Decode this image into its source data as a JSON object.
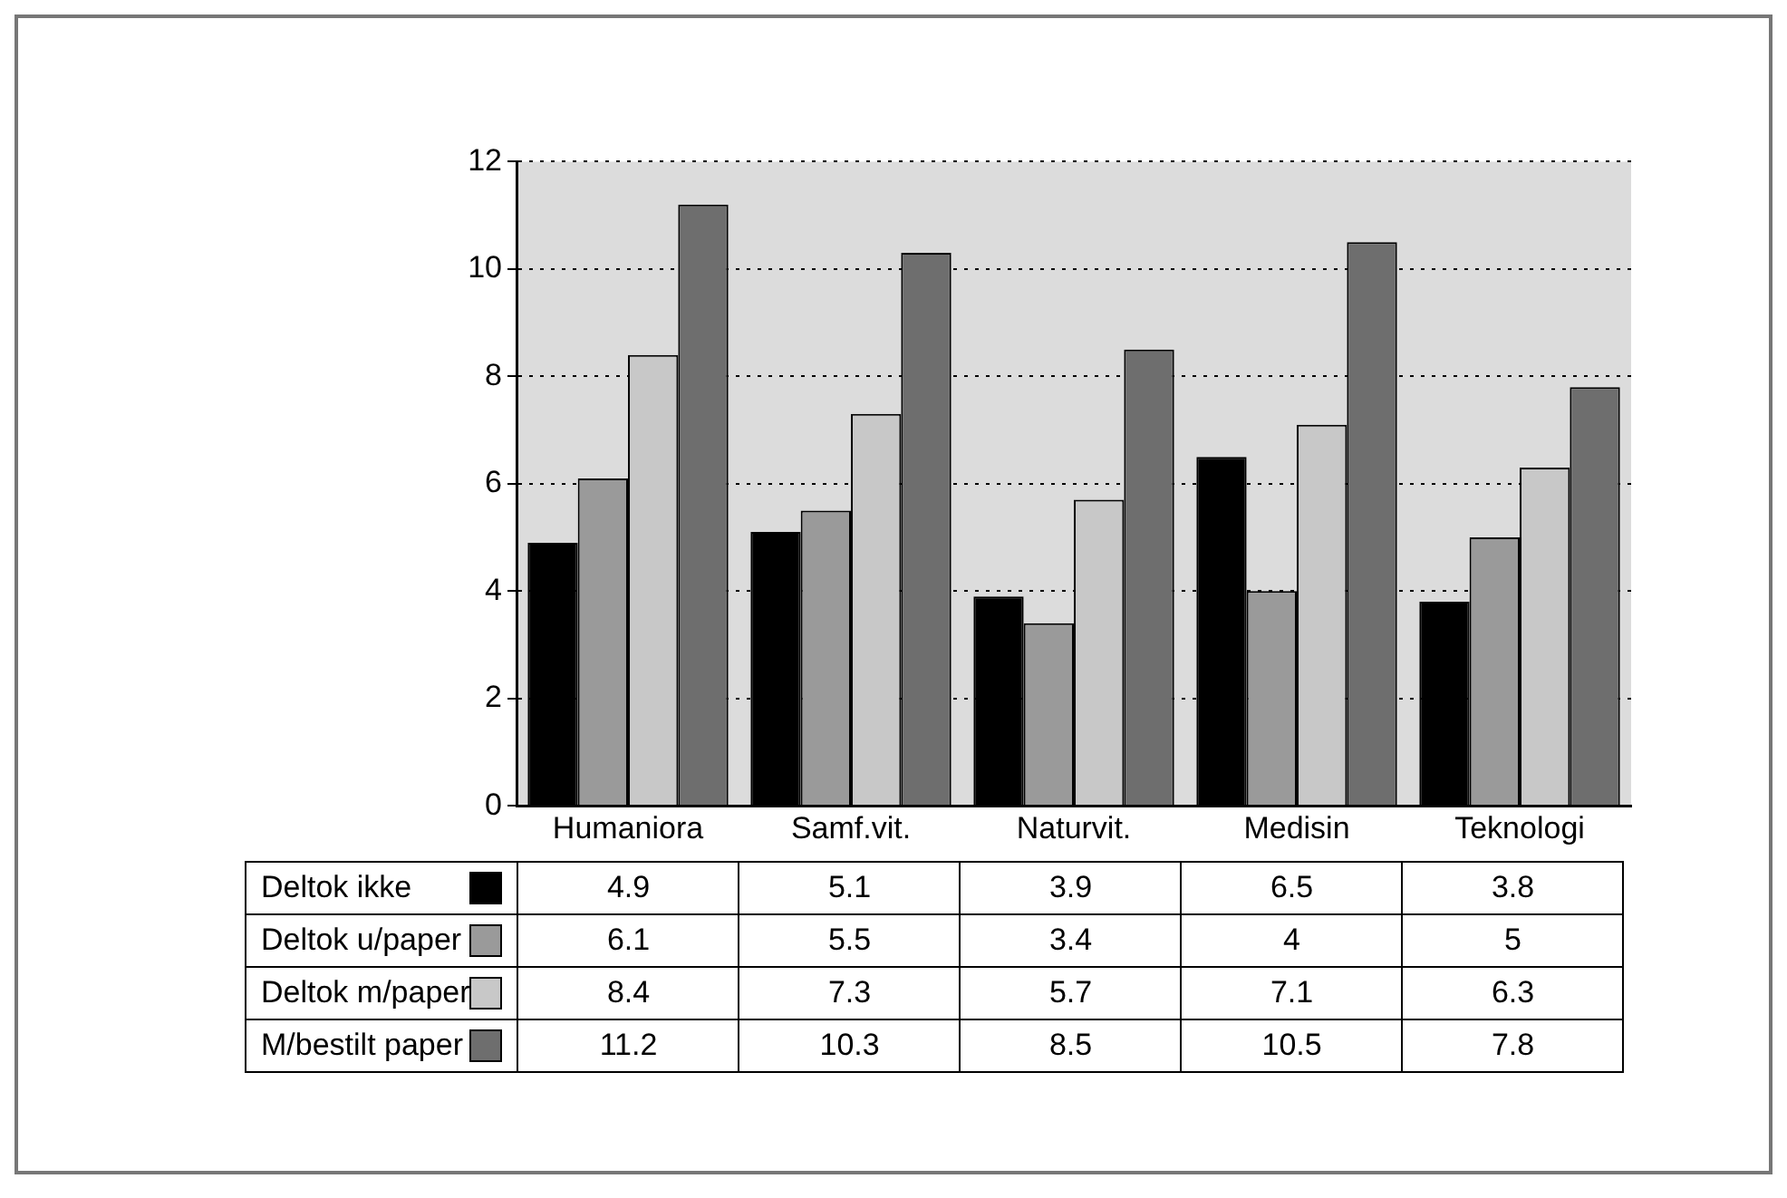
{
  "chart_data": {
    "type": "bar",
    "categories": [
      "Humaniora",
      "Samf.vit.",
      "Naturvit.",
      "Medisin",
      "Teknologi"
    ],
    "series": [
      {
        "name": "Deltok ikke",
        "color": "#000000",
        "values": [
          4.9,
          5.1,
          3.9,
          6.5,
          3.8
        ]
      },
      {
        "name": "Deltok u/paper",
        "color": "#9a9a9a",
        "values": [
          6.1,
          5.5,
          3.4,
          4,
          5
        ]
      },
      {
        "name": "Deltok m/paper",
        "color": "#c8c8c8",
        "values": [
          8.4,
          7.3,
          5.7,
          7.1,
          6.3
        ]
      },
      {
        "name": "M/bestilt paper",
        "color": "#6e6e6e",
        "values": [
          11.2,
          10.3,
          8.5,
          10.5,
          7.8
        ]
      }
    ],
    "ylim": [
      0,
      12
    ],
    "yticks": [
      0,
      2,
      4,
      6,
      8,
      10,
      12
    ],
    "grid": "y",
    "legend": "bottom",
    "data_labels": true
  }
}
